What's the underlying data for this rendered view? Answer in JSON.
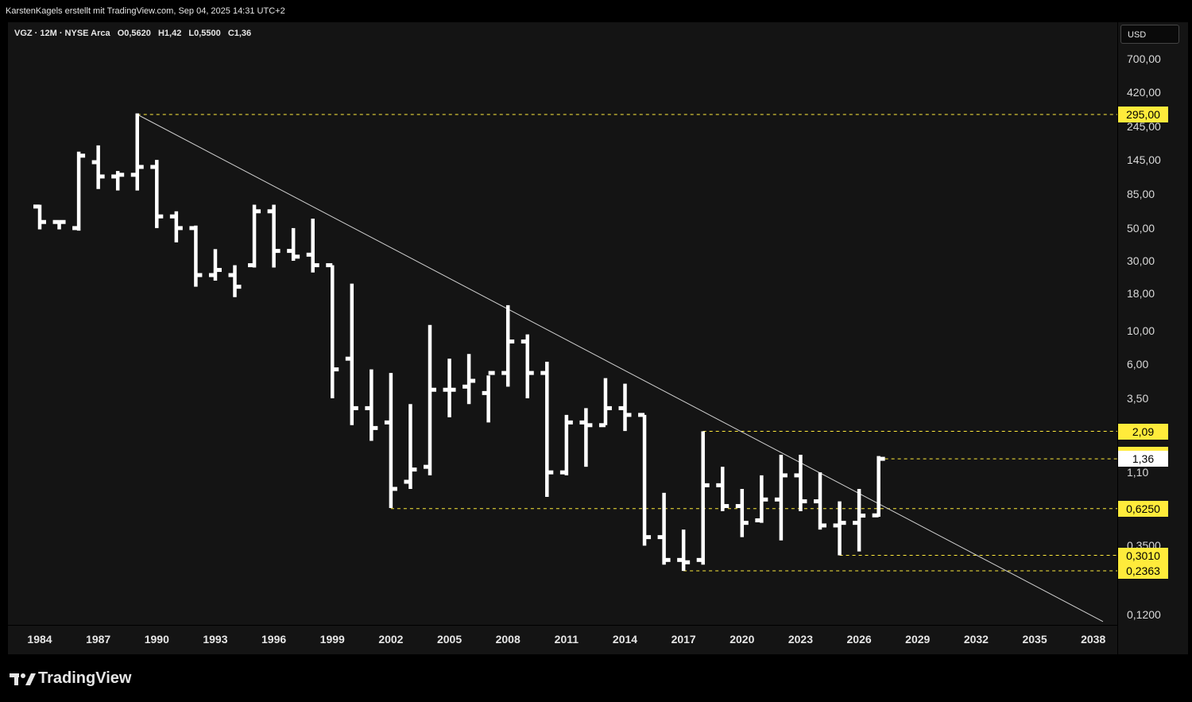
{
  "header": {
    "credit": "KarstenKagels erstellt mit TradingView.com, Sep 04, 2025 14:31 UTC+2"
  },
  "legend": {
    "symbol": "VGZ · 12M · NYSE Arca",
    "open": "O0,5620",
    "high": "H1,42",
    "low": "L0,5500",
    "close": "C1,36"
  },
  "price_axis": {
    "currency": "USD",
    "ticks": [
      {
        "value": 700,
        "label": "700,00"
      },
      {
        "value": 420,
        "label": "420,00"
      },
      {
        "value": 245,
        "label": "245,00"
      },
      {
        "value": 145,
        "label": "145,00"
      },
      {
        "value": 85,
        "label": "85,00"
      },
      {
        "value": 50,
        "label": "50,00"
      },
      {
        "value": 30,
        "label": "30,00"
      },
      {
        "value": 18,
        "label": "18,00"
      },
      {
        "value": 10,
        "label": "10,00"
      },
      {
        "value": 6,
        "label": "6,00"
      },
      {
        "value": 3.5,
        "label": "3,50"
      },
      {
        "value": 1.1,
        "label": "1,10"
      },
      {
        "value": 0.35,
        "label": "0,3500"
      },
      {
        "value": 0.12,
        "label": "0,1200"
      }
    ],
    "tags": [
      {
        "value": 295,
        "label": "295,00",
        "style": "yellow"
      },
      {
        "value": 2.09,
        "label": "2,09",
        "style": "yellow"
      },
      {
        "value": 1.45,
        "label": "1,45",
        "style": "yellow"
      },
      {
        "value": 1.36,
        "label": "1,36",
        "style": "white"
      },
      {
        "value": 0.625,
        "label": "0,6250",
        "style": "yellow"
      },
      {
        "value": 0.301,
        "label": "0,3010",
        "style": "yellow"
      },
      {
        "value": 0.2363,
        "label": "0,2363",
        "style": "yellow"
      }
    ]
  },
  "time_axis": {
    "labels": [
      {
        "year": 1984,
        "label": "1984"
      },
      {
        "year": 1987,
        "label": "1987"
      },
      {
        "year": 1990,
        "label": "1990"
      },
      {
        "year": 1993,
        "label": "1993"
      },
      {
        "year": 1996,
        "label": "1996"
      },
      {
        "year": 1999,
        "label": "1999"
      },
      {
        "year": 2002,
        "label": "2002"
      },
      {
        "year": 2005,
        "label": "2005"
      },
      {
        "year": 2008,
        "label": "2008"
      },
      {
        "year": 2011,
        "label": "2011"
      },
      {
        "year": 2014,
        "label": "2014"
      },
      {
        "year": 2017,
        "label": "2017"
      },
      {
        "year": 2020,
        "label": "2020"
      },
      {
        "year": 2023,
        "label": "2023"
      },
      {
        "year": 2026,
        "label": "2026"
      },
      {
        "year": 2029,
        "label": "2029"
      },
      {
        "year": 2032,
        "label": "2032"
      },
      {
        "year": 2035,
        "label": "2035"
      },
      {
        "year": 2038,
        "label": "2038"
      }
    ]
  },
  "brand": {
    "name": "TradingView"
  },
  "colors": {
    "background": "#141414",
    "bars": "#ffffff",
    "levels": "#ffeb3b",
    "trendline": "#d0d0d0"
  },
  "chart_data": {
    "type": "ohlc",
    "interval": "12M",
    "y_scale": "log",
    "ylim": [
      0.11,
      950
    ],
    "xlim": [
      1983,
      2038.5
    ],
    "bars": [
      {
        "x": 1984,
        "o": 70,
        "h": 72,
        "l": 49,
        "c": 55
      },
      {
        "x": 1985,
        "o": 55,
        "h": 55,
        "l": 49,
        "c": 55
      },
      {
        "x": 1986,
        "o": 50,
        "h": 165,
        "l": 48,
        "c": 155
      },
      {
        "x": 1987,
        "o": 140,
        "h": 182,
        "l": 92,
        "c": 112
      },
      {
        "x": 1988,
        "o": 112,
        "h": 122,
        "l": 90,
        "c": 115
      },
      {
        "x": 1989,
        "o": 115,
        "h": 300,
        "l": 90,
        "c": 130
      },
      {
        "x": 1990,
        "o": 130,
        "h": 145,
        "l": 50,
        "c": 60
      },
      {
        "x": 1991,
        "o": 60,
        "h": 65,
        "l": 40,
        "c": 50
      },
      {
        "x": 1992,
        "o": 50,
        "h": 52,
        "l": 20,
        "c": 24
      },
      {
        "x": 1993,
        "o": 24,
        "h": 36,
        "l": 22,
        "c": 26
      },
      {
        "x": 1994,
        "o": 24,
        "h": 28,
        "l": 17,
        "c": 20
      },
      {
        "x": 1995,
        "o": 28,
        "h": 72,
        "l": 27,
        "c": 65
      },
      {
        "x": 1996,
        "o": 65,
        "h": 72,
        "l": 27,
        "c": 35
      },
      {
        "x": 1997,
        "o": 35,
        "h": 50,
        "l": 30,
        "c": 32
      },
      {
        "x": 1998,
        "o": 33,
        "h": 58,
        "l": 25,
        "c": 28
      },
      {
        "x": 1999,
        "o": 28,
        "h": 28,
        "l": 3.5,
        "c": 5.5
      },
      {
        "x": 2000,
        "o": 6.5,
        "h": 21,
        "l": 2.3,
        "c": 3
      },
      {
        "x": 2001,
        "o": 3,
        "h": 5.5,
        "l": 1.8,
        "c": 2.2
      },
      {
        "x": 2002,
        "o": 2.4,
        "h": 5.2,
        "l": 0.63,
        "c": 0.85
      },
      {
        "x": 2003,
        "o": 0.95,
        "h": 3.2,
        "l": 0.85,
        "c": 1.15
      },
      {
        "x": 2004,
        "o": 1.2,
        "h": 11,
        "l": 1.05,
        "c": 4
      },
      {
        "x": 2005,
        "o": 4,
        "h": 6.5,
        "l": 2.6,
        "c": 4
      },
      {
        "x": 2006,
        "o": 4.2,
        "h": 7,
        "l": 3.2,
        "c": 4.6
      },
      {
        "x": 2007,
        "o": 3.8,
        "h": 5,
        "l": 2.4,
        "c": 5.2
      },
      {
        "x": 2008,
        "o": 5.2,
        "h": 15,
        "l": 4.2,
        "c": 8.5
      },
      {
        "x": 2009,
        "o": 8.5,
        "h": 9.5,
        "l": 3.5,
        "c": 5.2
      },
      {
        "x": 2010,
        "o": 5.2,
        "h": 6.2,
        "l": 0.75,
        "c": 1.1
      },
      {
        "x": 2011,
        "o": 1.1,
        "h": 2.7,
        "l": 1.05,
        "c": 2.4
      },
      {
        "x": 2012,
        "o": 2.4,
        "h": 3,
        "l": 1.2,
        "c": 2.3
      },
      {
        "x": 2013,
        "o": 2.3,
        "h": 4.8,
        "l": 2.3,
        "c": 3
      },
      {
        "x": 2014,
        "o": 3,
        "h": 4.4,
        "l": 2.1,
        "c": 2.7
      },
      {
        "x": 2015,
        "o": 2.7,
        "h": 2.7,
        "l": 0.35,
        "c": 0.4
      },
      {
        "x": 2016,
        "o": 0.4,
        "h": 0.8,
        "l": 0.26,
        "c": 0.28
      },
      {
        "x": 2017,
        "o": 0.28,
        "h": 0.45,
        "l": 0.236,
        "c": 0.27
      },
      {
        "x": 2018,
        "o": 0.28,
        "h": 2.09,
        "l": 0.26,
        "c": 0.9
      },
      {
        "x": 2019,
        "o": 0.9,
        "h": 1.2,
        "l": 0.6,
        "c": 0.65
      },
      {
        "x": 2020,
        "o": 0.65,
        "h": 0.85,
        "l": 0.4,
        "c": 0.5
      },
      {
        "x": 2021,
        "o": 0.52,
        "h": 1.05,
        "l": 0.5,
        "c": 0.72
      },
      {
        "x": 2022,
        "o": 0.72,
        "h": 1.45,
        "l": 0.38,
        "c": 1.05
      },
      {
        "x": 2023,
        "o": 1.05,
        "h": 1.45,
        "l": 0.6,
        "c": 0.7
      },
      {
        "x": 2024,
        "o": 0.7,
        "h": 1.1,
        "l": 0.45,
        "c": 0.48
      },
      {
        "x": 2025,
        "o": 0.48,
        "h": 0.7,
        "l": 0.301,
        "c": 0.5
      },
      {
        "x": 2026,
        "o": 0.5,
        "h": 0.85,
        "l": 0.32,
        "c": 0.56
      },
      {
        "x": 2027,
        "o": 0.562,
        "h": 1.42,
        "l": 0.55,
        "c": 1.36
      }
    ],
    "levels": [
      {
        "value": 295,
        "from": 1989
      },
      {
        "value": 2.09,
        "from": 2018
      },
      {
        "value": 1.36,
        "from": 2027
      },
      {
        "value": 0.625,
        "from": 2002
      },
      {
        "value": 0.301,
        "from": 2025
      },
      {
        "value": 0.2363,
        "from": 2017
      }
    ],
    "trendline": {
      "x1": 1989,
      "y1": 295,
      "x2": 2038.5,
      "y2": 0.107
    }
  }
}
